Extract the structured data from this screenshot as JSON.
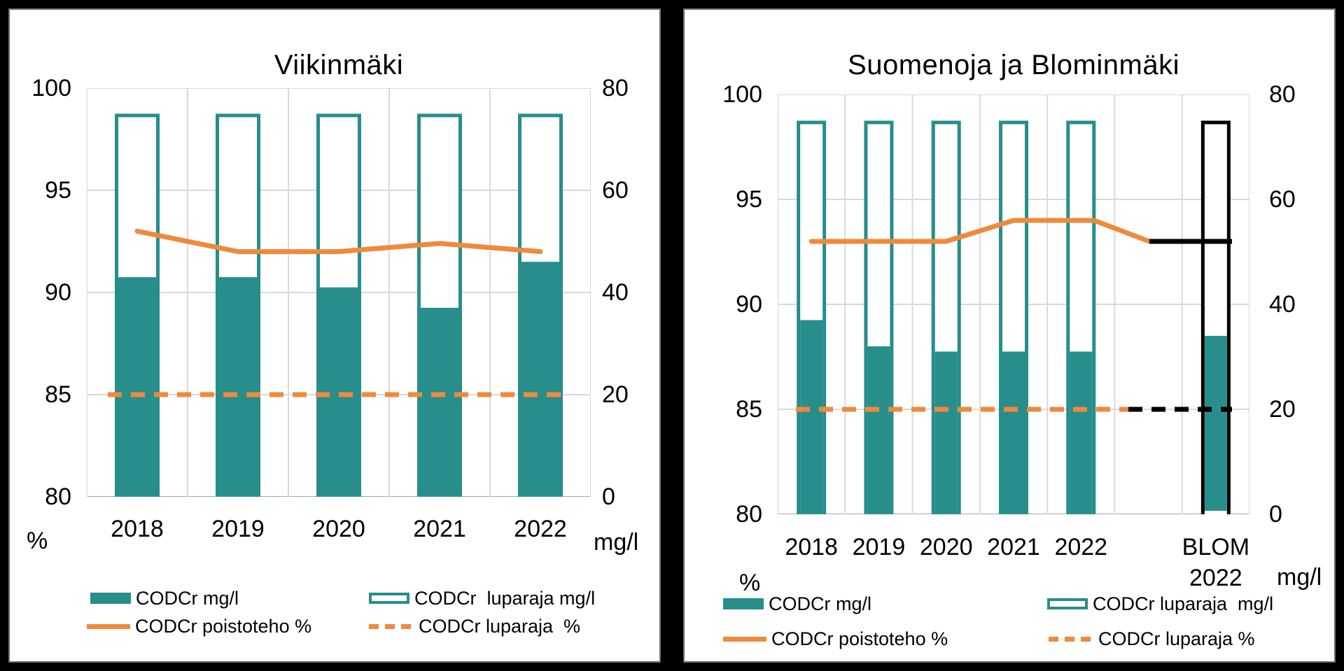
{
  "colors": {
    "teal": "#278E8C",
    "orange": "#EF8A3C",
    "black_series": "#000000",
    "gridline": "#D9D9D9",
    "axis_line": "#A6A6A6",
    "text": "#000000",
    "panel_background": "#FFFFFF",
    "frame_background": "#000000"
  },
  "chart_data": [
    {
      "type": "bar+line",
      "title": "Viikinmäki",
      "categories": [
        "2018",
        "2019",
        "2020",
        "2021",
        "2022"
      ],
      "left_axis": {
        "unit": "%",
        "min": 80,
        "max": 100,
        "ticks": [
          100,
          95,
          90,
          85,
          80
        ]
      },
      "right_axis": {
        "unit": "mg/l",
        "min": 0,
        "max": 80,
        "ticks": [
          80,
          60,
          40,
          20,
          0
        ]
      },
      "grid": true,
      "legend_position": "bottom",
      "series": [
        {
          "name": "CODCr mg/l",
          "type": "bar",
          "axis": "right",
          "style": "filled-teal",
          "values": [
            43,
            43,
            41,
            37,
            46
          ]
        },
        {
          "name": "CODCr  luparaja mg/l",
          "type": "bar",
          "axis": "right",
          "style": "outline-teal",
          "values": [
            75,
            75,
            75,
            75,
            75
          ]
        },
        {
          "name": "CODCr poistoteho %",
          "type": "line",
          "axis": "left",
          "style": "solid-orange",
          "values": [
            93,
            92,
            92,
            92.4,
            92
          ]
        },
        {
          "name": "CODCr luparaja  %",
          "type": "line",
          "axis": "left",
          "style": "dashed-orange",
          "values": [
            85,
            85,
            85,
            85,
            85
          ]
        }
      ]
    },
    {
      "type": "bar+line",
      "title": "Suomenoja ja Blominmäki",
      "categories": [
        "2018",
        "2019",
        "2020",
        "2021",
        "2022"
      ],
      "left_axis": {
        "unit": "%",
        "min": 80,
        "max": 100,
        "ticks": [
          100,
          95,
          90,
          85,
          80
        ]
      },
      "right_axis": {
        "unit": "mg/l",
        "min": 0,
        "max": 80,
        "ticks": [
          80,
          60,
          40,
          20,
          0
        ]
      },
      "grid": true,
      "legend_position": "bottom",
      "series": [
        {
          "name": "CODCr mg/l",
          "type": "bar",
          "axis": "right",
          "style": "filled-teal",
          "values": [
            37,
            32,
            31,
            31,
            31
          ]
        },
        {
          "name": "CODCr luparaja  mg/l",
          "type": "bar",
          "axis": "right",
          "style": "outline-teal",
          "values": [
            75,
            75,
            75,
            75,
            75
          ]
        },
        {
          "name": "CODCr poistoteho %",
          "type": "line",
          "axis": "left",
          "style": "solid-orange",
          "values": [
            93,
            93,
            93,
            94,
            94
          ]
        },
        {
          "name": "CODCr luparaja %",
          "type": "line",
          "axis": "left",
          "style": "dashed-orange",
          "values": [
            85,
            85,
            85,
            85,
            85
          ]
        }
      ],
      "blom": {
        "category_line1": "BLOM",
        "category_line2": "2022",
        "codcr_mg_l": 34,
        "luparaja_mg_l": 75,
        "poistoteho_pct": 93,
        "luparaja_pct": 85,
        "bar_outline": "black",
        "line_color": "black"
      }
    }
  ]
}
